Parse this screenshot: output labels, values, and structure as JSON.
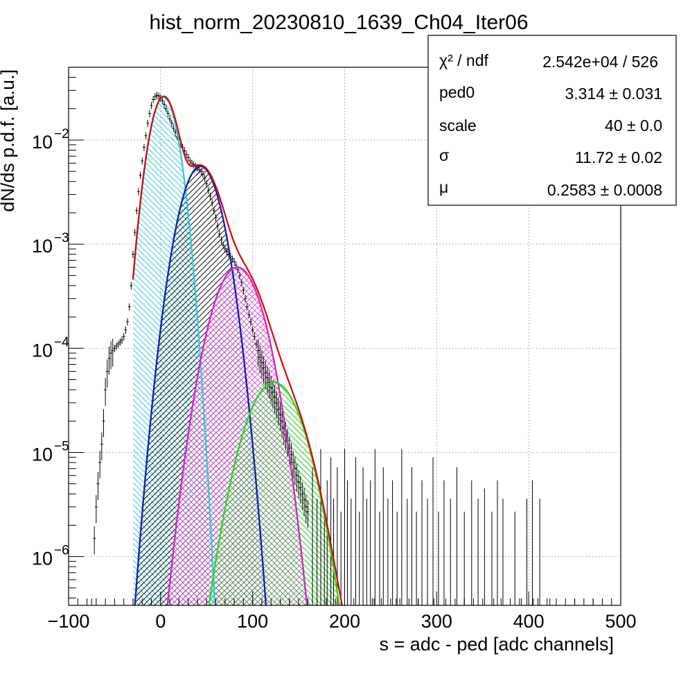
{
  "chart_data": {
    "type": "line",
    "title": "hist_norm_20230810_1639_Ch04_Iter06",
    "xlabel": "s = adc - ped [adc channels]",
    "ylabel": "dN/ds p.d.f. [a.u.]",
    "xlim": [
      -100,
      500
    ],
    "ylim": [
      3.4e-07,
      0.05
    ],
    "yscale": "log",
    "grid": true,
    "x_ticks": [
      {
        "value": -100,
        "label": "−100"
      },
      {
        "value": 0,
        "label": "0"
      },
      {
        "value": 100,
        "label": "100"
      },
      {
        "value": 200,
        "label": "200"
      },
      {
        "value": 300,
        "label": "300"
      },
      {
        "value": 400,
        "label": "400"
      },
      {
        "value": 500,
        "label": "500"
      }
    ],
    "y_ticks": [
      {
        "value": 1e-06,
        "base": "10",
        "exp": "−6"
      },
      {
        "value": 1e-05,
        "base": "10",
        "exp": "−5"
      },
      {
        "value": 0.0001,
        "base": "10",
        "exp": "−4"
      },
      {
        "value": 0.001,
        "base": "10",
        "exp": "−3"
      },
      {
        "value": 0.01,
        "base": "10",
        "exp": "−2"
      }
    ],
    "stats_box": {
      "placement": "top-right",
      "rows": [
        {
          "label": "χ² / ndf",
          "value": "2.542e+04 / 526"
        },
        {
          "label": "ped0",
          "value": "3.314 ± 0.031"
        },
        {
          "label": "scale",
          "value": "40 ± 0.0"
        },
        {
          "label": "σ",
          "value": "11.72 ± 0.02"
        },
        {
          "label": "μ",
          "value": "0.2583 ± 0.0008"
        }
      ]
    },
    "fit_params": {
      "ped0": 3.314,
      "scale": 40,
      "sigma": 11.72,
      "mu": 0.2583
    },
    "peaks": [
      {
        "n": 0,
        "mean": 3.3,
        "amplitude": 0.026,
        "color": "#33ccdd",
        "hatch": "diagonal-down"
      },
      {
        "n": 1,
        "mean": 43.3,
        "amplitude": 0.0056,
        "color": "#1122bb",
        "hatch": "diagonal-up"
      },
      {
        "n": 2,
        "mean": 83.3,
        "amplitude": 0.0006,
        "color": "#dd22cc",
        "hatch": "cross"
      },
      {
        "n": 3,
        "mean": 123.3,
        "amplitude": 4.7e-05,
        "color": "#22dd22",
        "hatch": "diagonal-down"
      }
    ],
    "total_fit": {
      "color": "#dd0000",
      "x_start": -30,
      "x_end": 210
    },
    "histogram": {
      "color": "#000000",
      "x": [
        -72,
        -70,
        -68,
        -66,
        -64,
        -62,
        -60,
        -58,
        -56,
        -54,
        -52,
        -50,
        -48,
        -46,
        -44,
        -42,
        -40,
        -38,
        -36,
        -34,
        -32,
        -30,
        -28,
        -26,
        -24,
        -22,
        -20,
        -18,
        -16,
        -14,
        -12,
        -10,
        -8,
        -6,
        -4,
        -2,
        0,
        2,
        4,
        6,
        8,
        10,
        12,
        14,
        16,
        18,
        20,
        22,
        24,
        26,
        28,
        30,
        32,
        34,
        36,
        38,
        40,
        42,
        44,
        46,
        48,
        50,
        52,
        54,
        56,
        58,
        60,
        62,
        64,
        66,
        68,
        70,
        72,
        74,
        76,
        78,
        80,
        82,
        84,
        86,
        88,
        90,
        92,
        94,
        96,
        98,
        100,
        102,
        104,
        106,
        108,
        110,
        112,
        114,
        116,
        118,
        120,
        122,
        124,
        126,
        128,
        130,
        132,
        134,
        136,
        138,
        140,
        142,
        144,
        146,
        148,
        150,
        152,
        154,
        156,
        158,
        160
      ],
      "y": [
        1.5e-06,
        3e-06,
        5e-06,
        8e-06,
        1.2e-05,
        2e-05,
        4e-05,
        6e-05,
        8e-05,
        9e-05,
        9.5e-05,
        0.0001,
        0.000105,
        0.00011,
        0.000115,
        0.00012,
        0.00013,
        0.00015,
        0.00018,
        0.00025,
        0.0004,
        0.0008,
        0.0013,
        0.0021,
        0.0032,
        0.0046,
        0.0063,
        0.0085,
        0.011,
        0.0145,
        0.018,
        0.0215,
        0.0245,
        0.0262,
        0.0268,
        0.0265,
        0.0255,
        0.024,
        0.022,
        0.02,
        0.018,
        0.016,
        0.0145,
        0.013,
        0.0118,
        0.0108,
        0.01,
        0.0092,
        0.0085,
        0.0079,
        0.0073,
        0.0068,
        0.0063,
        0.006,
        0.0058,
        0.0056,
        0.0054,
        0.0052,
        0.005,
        0.0047,
        0.0043,
        0.0038,
        0.0033,
        0.0029,
        0.0025,
        0.0021,
        0.0018,
        0.0015,
        0.00125,
        0.0011,
        0.00098,
        0.0009,
        0.00085,
        0.0008,
        0.00076,
        0.00072,
        0.00068,
        0.00063,
        0.00057,
        0.0005,
        0.00043,
        0.00036,
        0.0003,
        0.00025,
        0.00021,
        0.00018,
        0.00015,
        0.00013,
        0.00011,
        9.5e-05,
        8.2e-05,
        7.3e-05,
        6.5e-05,
        5.8e-05,
        5.2e-05,
        4.7e-05,
        4.2e-05,
        3.8e-05,
        3.4e-05,
        3e-05,
        2.6e-05,
        2.3e-05,
        2e-05,
        1.7e-05,
        1.5e-05,
        1.3e-05,
        1.1e-05,
        9.5e-06,
        8e-06,
        7e-06,
        6e-06,
        5.2e-06,
        4.6e-06,
        4e-06,
        3.5e-06,
        3e-06,
        2.7e-06
      ],
      "sparse_tail": {
        "x": [
          165,
          170,
          174,
          178,
          181,
          185,
          188,
          192,
          196,
          200,
          203,
          207,
          212,
          216,
          220,
          224,
          228,
          233,
          238,
          242,
          247,
          252,
          257,
          262,
          268,
          273,
          278,
          284,
          290,
          296,
          302,
          308,
          315,
          322,
          330,
          338,
          345,
          352,
          360,
          366,
          372,
          385,
          398,
          404,
          412
        ],
        "y": [
          4e-06,
          2e-06,
          6e-06,
          1.5e-06,
          3e-06,
          5e-06,
          2e-06,
          4e-06,
          1.5e-06,
          6e-06,
          3e-06,
          2e-06,
          5e-06,
          1.5e-06,
          4e-06,
          2e-06,
          3e-06,
          6e-06,
          1.5e-06,
          4e-06,
          2e-06,
          3e-06,
          1.5e-06,
          6e-06,
          2e-06,
          4e-06,
          1.5e-06,
          3e-06,
          2e-06,
          5e-06,
          1.5e-06,
          3e-06,
          2e-06,
          4e-06,
          1.5e-06,
          3e-06,
          2e-06,
          2.5e-06,
          1.5e-06,
          3e-06,
          2e-06,
          1.5e-06,
          2e-06,
          3e-06,
          2e-06
        ]
      },
      "baseline_ticks_x": [
        -75,
        100,
        140,
        160,
        232,
        256,
        280,
        297,
        330,
        362,
        392,
        405,
        423,
        450,
        470
      ]
    }
  }
}
